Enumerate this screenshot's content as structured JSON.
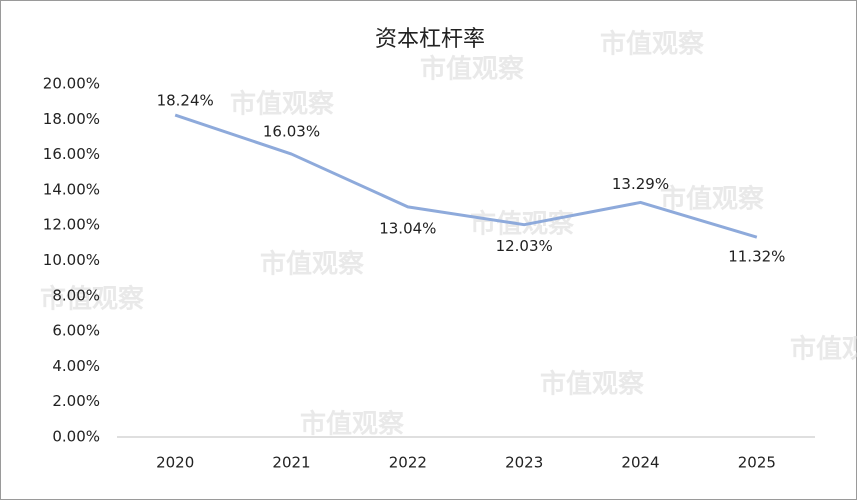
{
  "watermark": "市值观察",
  "chart_data": {
    "type": "line",
    "title": "资本杠杆率",
    "categories": [
      "2020",
      "2021",
      "2022",
      "2023",
      "2024",
      "2025"
    ],
    "series": [
      {
        "name": "资本杠杆率",
        "color": "#8eaadb",
        "values": [
          18.24,
          16.03,
          13.04,
          12.03,
          13.29,
          11.32
        ],
        "value_labels": [
          "18.24%",
          "16.03%",
          "13.04%",
          "12.03%",
          "13.29%",
          "11.32%"
        ]
      }
    ],
    "ylim": [
      0,
      20
    ],
    "yticks": [
      {
        "value": 0,
        "label": "0.00%"
      },
      {
        "value": 2,
        "label": "2.00%"
      },
      {
        "value": 4,
        "label": "4.00%"
      },
      {
        "value": 6,
        "label": "6.00%"
      },
      {
        "value": 8,
        "label": "8.00%"
      },
      {
        "value": 10,
        "label": "10.00%"
      },
      {
        "value": 12,
        "label": "12.00%"
      },
      {
        "value": 14,
        "label": "14.00%"
      },
      {
        "value": 16,
        "label": "16.00%"
      },
      {
        "value": 18,
        "label": "18.00%"
      },
      {
        "value": 20,
        "label": "20.00%"
      }
    ],
    "grid": false
  }
}
